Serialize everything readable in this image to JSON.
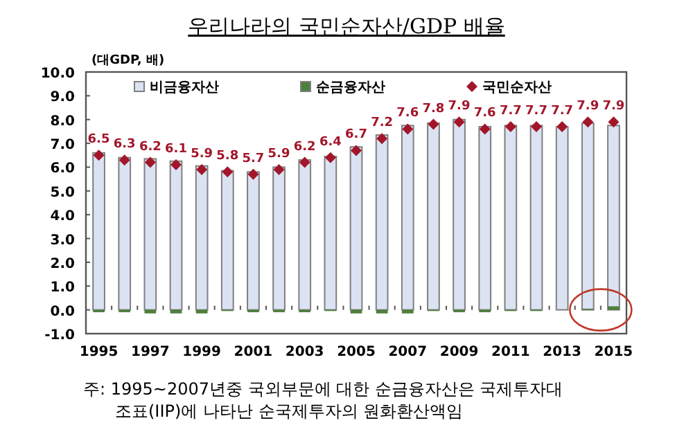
{
  "chart_data": {
    "type": "bar",
    "title": "우리나라의 국민순자산/GDP 배율",
    "ylabel": "(대GDP, 배)",
    "categories": [
      "1995",
      null,
      "1997",
      null,
      "1999",
      null,
      "2001",
      null,
      "2003",
      null,
      "2005",
      null,
      "2007",
      null,
      "2009",
      null,
      "2011",
      null,
      "2013",
      null,
      "2015"
    ],
    "series": [
      {
        "name": "비금융자산",
        "type": "bar",
        "color": "#dbe3f3",
        "values": [
          6.6,
          6.4,
          6.35,
          6.25,
          6.05,
          5.85,
          5.8,
          6.0,
          6.3,
          6.45,
          6.85,
          7.35,
          7.75,
          7.85,
          8.0,
          7.7,
          7.75,
          7.75,
          7.7,
          7.85,
          7.75
        ]
      },
      {
        "name": "순금융자산",
        "type": "bar",
        "color": "#4e7f3c",
        "values": [
          -0.1,
          -0.1,
          -0.15,
          -0.15,
          -0.15,
          -0.05,
          -0.1,
          -0.1,
          -0.1,
          -0.05,
          -0.15,
          -0.15,
          -0.15,
          -0.05,
          -0.1,
          -0.1,
          -0.05,
          -0.05,
          0.0,
          0.05,
          0.15
        ]
      },
      {
        "name": "국민순자산",
        "type": "scatter",
        "color": "#a3162a",
        "marker": "diamond",
        "data_labels": true,
        "values": [
          6.5,
          6.3,
          6.2,
          6.1,
          5.9,
          5.8,
          5.7,
          5.9,
          6.2,
          6.4,
          6.7,
          7.2,
          7.6,
          7.8,
          7.9,
          7.6,
          7.7,
          7.7,
          7.7,
          7.9,
          7.9
        ]
      }
    ],
    "ylim": [
      -1,
      10
    ],
    "yticks": [
      {
        "value": -1,
        "label": "-1.0"
      },
      {
        "value": 0,
        "label": "0.0"
      },
      {
        "value": 1,
        "label": "1.0"
      },
      {
        "value": 2,
        "label": "2.0"
      },
      {
        "value": 3,
        "label": "3.0"
      },
      {
        "value": 4,
        "label": "4.0"
      },
      {
        "value": 5,
        "label": "5.0"
      },
      {
        "value": 6,
        "label": "6.0"
      },
      {
        "value": 7,
        "label": "7.0"
      },
      {
        "value": 8,
        "label": "8.0"
      },
      {
        "value": 9,
        "label": "9.0"
      },
      {
        "value": 10,
        "label": "10.0"
      }
    ],
    "grid": false,
    "legend": "top",
    "annotations": [
      "주: 1995~2007년중 국외부문에 대한 순금융자산은 국제투자대",
      "조표(IIP)에 나타난 순국제투자의 원화환산액임"
    ]
  }
}
